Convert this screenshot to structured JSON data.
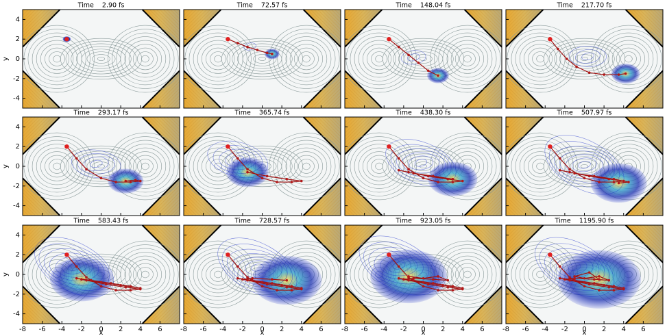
{
  "chart_data": {
    "type": "contour-grid",
    "xlabel": "x",
    "ylabel": "y",
    "xlim": [
      -8,
      8
    ],
    "ylim": [
      -5,
      5
    ],
    "xticks": [
      -8,
      -6,
      -4,
      -2,
      0,
      2,
      4,
      6
    ],
    "yticks": [
      -4,
      -2,
      0,
      2,
      4
    ],
    "panels": [
      {
        "title": "Time    2.90 fs",
        "trajectory": {
          "x": [
            -3.5
          ],
          "y": [
            2
          ]
        }
      },
      {
        "title": "Time    72.57 fs",
        "trajectory": {
          "x": [
            -3.5,
            -2.5,
            -1.5,
            -0.5,
            0.5,
            1
          ],
          "y": [
            2,
            1.6,
            1.2,
            0.9,
            0.6,
            0.5
          ]
        }
      },
      {
        "title": "Time    148.04 fs",
        "trajectory": {
          "x": [
            -3.5,
            -2.5,
            -1.5,
            -0.5,
            0.5,
            1.5
          ],
          "y": [
            2,
            1.2,
            0.4,
            -0.4,
            -1.2,
            -1.7
          ]
        }
      },
      {
        "title": "Time    217.70 fs",
        "trajectory": {
          "x": [
            -3.5,
            -2.7,
            -1.8,
            -0.8,
            0.5,
            2,
            3.5,
            4.2
          ],
          "y": [
            2,
            1,
            0,
            -0.8,
            -1.4,
            -1.6,
            -1.6,
            -1.5
          ]
        }
      },
      {
        "title": "Time    293.17 fs",
        "trajectory": {
          "x": [
            -3.5,
            -2.5,
            -1.5,
            0,
            1.5,
            3,
            4,
            3.5,
            2.5
          ],
          "y": [
            2,
            0.8,
            -0.3,
            -1.2,
            -1.6,
            -1.6,
            -1.5,
            -1.4,
            -1.5
          ]
        }
      },
      {
        "title": "Time    365.74 fs",
        "trajectory": {
          "x": [
            -3.5,
            -2.5,
            -1.5,
            0,
            1.5,
            3,
            4,
            2.5,
            0.5,
            -1.5
          ],
          "y": [
            2,
            0.8,
            -0.3,
            -1.2,
            -1.6,
            -1.6,
            -1.5,
            -1.3,
            -1,
            -0.6
          ]
        }
      },
      {
        "title": "Time    438.30 fs",
        "trajectory": {
          "x": [
            -3.5,
            -2.5,
            -1.5,
            0,
            1.5,
            3,
            4,
            2.5,
            0.5,
            -1.5,
            -2.5,
            -1,
            1,
            3
          ],
          "y": [
            2,
            0.8,
            -0.3,
            -1.2,
            -1.6,
            -1.6,
            -1.5,
            -1.3,
            -1,
            -0.6,
            -0.4,
            -0.7,
            -1,
            -1.3
          ]
        }
      },
      {
        "title": "Time    507.97 fs",
        "trajectory": {
          "x": [
            -3.5,
            -2.5,
            -1.5,
            0,
            1.5,
            3,
            4,
            2.5,
            0.5,
            -1.5,
            -2.5,
            -1,
            1,
            3,
            4.5,
            3.5
          ],
          "y": [
            2,
            0.8,
            -0.3,
            -1.2,
            -1.6,
            -1.6,
            -1.5,
            -1.3,
            -1,
            -0.6,
            -0.4,
            -0.7,
            -1,
            -1.3,
            -1.6,
            -1.7
          ]
        }
      },
      {
        "title": "Time    583.43 fs",
        "trajectory": {
          "x": [
            -3.5,
            -2.5,
            -1.5,
            0,
            1.5,
            3,
            4,
            2.5,
            0.5,
            -1.5,
            -2.5,
            -1,
            1,
            3,
            4,
            2,
            0,
            -2
          ],
          "y": [
            2,
            0.8,
            -0.3,
            -1.2,
            -1.6,
            -1.6,
            -1.5,
            -1.3,
            -1,
            -0.6,
            -0.4,
            -0.6,
            -0.9,
            -1.2,
            -1.4,
            -1.1,
            -0.8,
            -0.5
          ]
        }
      },
      {
        "title": "Time    728.57 fs",
        "trajectory": {
          "x": [
            -3.5,
            -2.5,
            -1.5,
            0,
            1.5,
            3,
            4,
            2.5,
            0.5,
            -1.5,
            -2.5,
            -1,
            1,
            3,
            4,
            2,
            0,
            -2,
            -1,
            1,
            2.5
          ],
          "y": [
            2,
            0.8,
            -0.3,
            -1.2,
            -1.6,
            -1.6,
            -1.5,
            -1.3,
            -1,
            -0.6,
            -0.4,
            -0.6,
            -0.9,
            -1.2,
            -1.4,
            -1.1,
            -0.8,
            -0.5,
            -0.4,
            -0.5,
            -0.6
          ]
        }
      },
      {
        "title": "Time    923.05 fs",
        "trajectory": {
          "x": [
            -3.5,
            -2.5,
            -1.5,
            0,
            1.5,
            3,
            4,
            2.5,
            0.5,
            -1.5,
            -2.5,
            -1,
            1,
            3,
            4,
            2,
            0,
            -2,
            -1,
            1,
            2.5,
            1.5,
            0,
            -1.5
          ],
          "y": [
            2,
            0.8,
            -0.3,
            -1.2,
            -1.6,
            -1.6,
            -1.5,
            -1.3,
            -1,
            -0.6,
            -0.4,
            -0.6,
            -0.9,
            -1.2,
            -1.4,
            -1.1,
            -0.8,
            -0.5,
            -0.4,
            -0.5,
            -0.6,
            -0.2,
            -0.4,
            -0.2
          ]
        }
      },
      {
        "title": "Time    1195.90 fs",
        "trajectory": {
          "x": [
            -3.5,
            -2.5,
            -1.5,
            0,
            1.5,
            3,
            4,
            2.5,
            0.5,
            -1.5,
            -2.5,
            -1,
            1,
            3,
            4,
            2,
            0,
            -2,
            -1,
            1,
            2.5,
            1.5,
            0,
            -1,
            0.5,
            1.5
          ],
          "y": [
            2,
            0.8,
            -0.3,
            -1.2,
            -1.6,
            -1.6,
            -1.5,
            -1.3,
            -1,
            -0.6,
            -0.4,
            -0.6,
            -0.9,
            -1.2,
            -1.4,
            -1.1,
            -0.8,
            -0.5,
            -0.4,
            -0.5,
            -0.6,
            -0.2,
            -0.4,
            -0.2,
            0.2,
            -0.5
          ]
        }
      }
    ]
  }
}
